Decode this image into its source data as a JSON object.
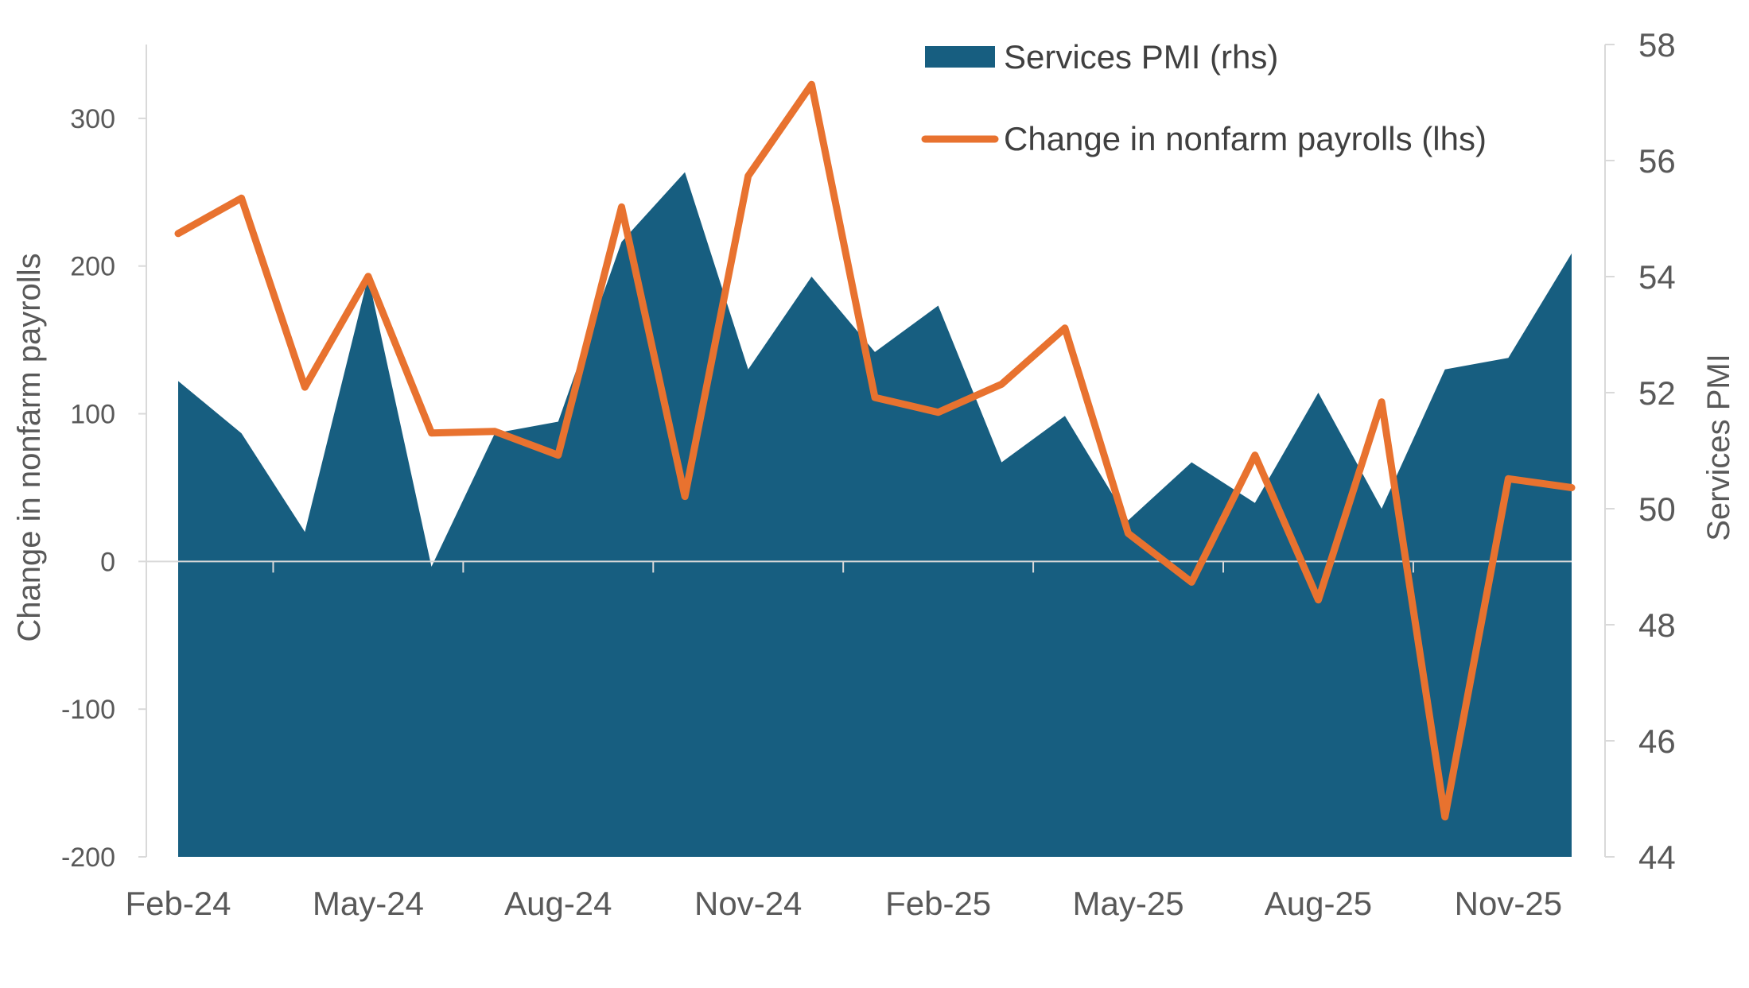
{
  "chart_data": {
    "type": "area+line",
    "x": [
      "Feb-24",
      "Mar-24",
      "Apr-24",
      "May-24",
      "Jun-24",
      "Jul-24",
      "Aug-24",
      "Sep-24",
      "Oct-24",
      "Nov-24",
      "Dec-24",
      "Jan-25",
      "Feb-25",
      "Mar-25",
      "Apr-25",
      "May-25",
      "Jun-25",
      "Jul-25",
      "Aug-25",
      "Sep-25",
      "Oct-25",
      "Nov-25",
      "Dec-25"
    ],
    "x_tick_labels": [
      "Feb-24",
      "May-24",
      "Aug-24",
      "Nov-24",
      "Feb-25",
      "May-25",
      "Aug-25",
      "Nov-25"
    ],
    "series": [
      {
        "name": "Services PMI (rhs)",
        "type": "area",
        "axis": "right",
        "color": "#175e80",
        "values": [
          52.2,
          51.3,
          49.6,
          54.0,
          49.0,
          51.3,
          51.5,
          54.6,
          55.8,
          52.4,
          54.0,
          52.7,
          53.5,
          50.8,
          51.6,
          49.8,
          50.8,
          50.1,
          52.0,
          50.0,
          52.4,
          52.6,
          54.4
        ]
      },
      {
        "name": "Change in nonfarm payrolls (lhs)",
        "type": "line",
        "axis": "left",
        "color": "#e8722f",
        "values": [
          222,
          246,
          118,
          193,
          87,
          88,
          72,
          240,
          44,
          261,
          323,
          111,
          101,
          120,
          158,
          19,
          -14,
          72,
          -26,
          108,
          -173,
          56,
          50
        ]
      }
    ],
    "y_left": {
      "label": "Change in nonfarm payrolls",
      "range": [
        -200,
        350
      ],
      "ticks": [
        -200,
        -100,
        0,
        100,
        200,
        300
      ]
    },
    "y_right": {
      "label": "Services PMI",
      "range": [
        44,
        58
      ],
      "ticks": [
        44,
        46,
        48,
        50,
        52,
        54,
        56,
        58
      ]
    },
    "grid": false,
    "legend": "top-right"
  }
}
